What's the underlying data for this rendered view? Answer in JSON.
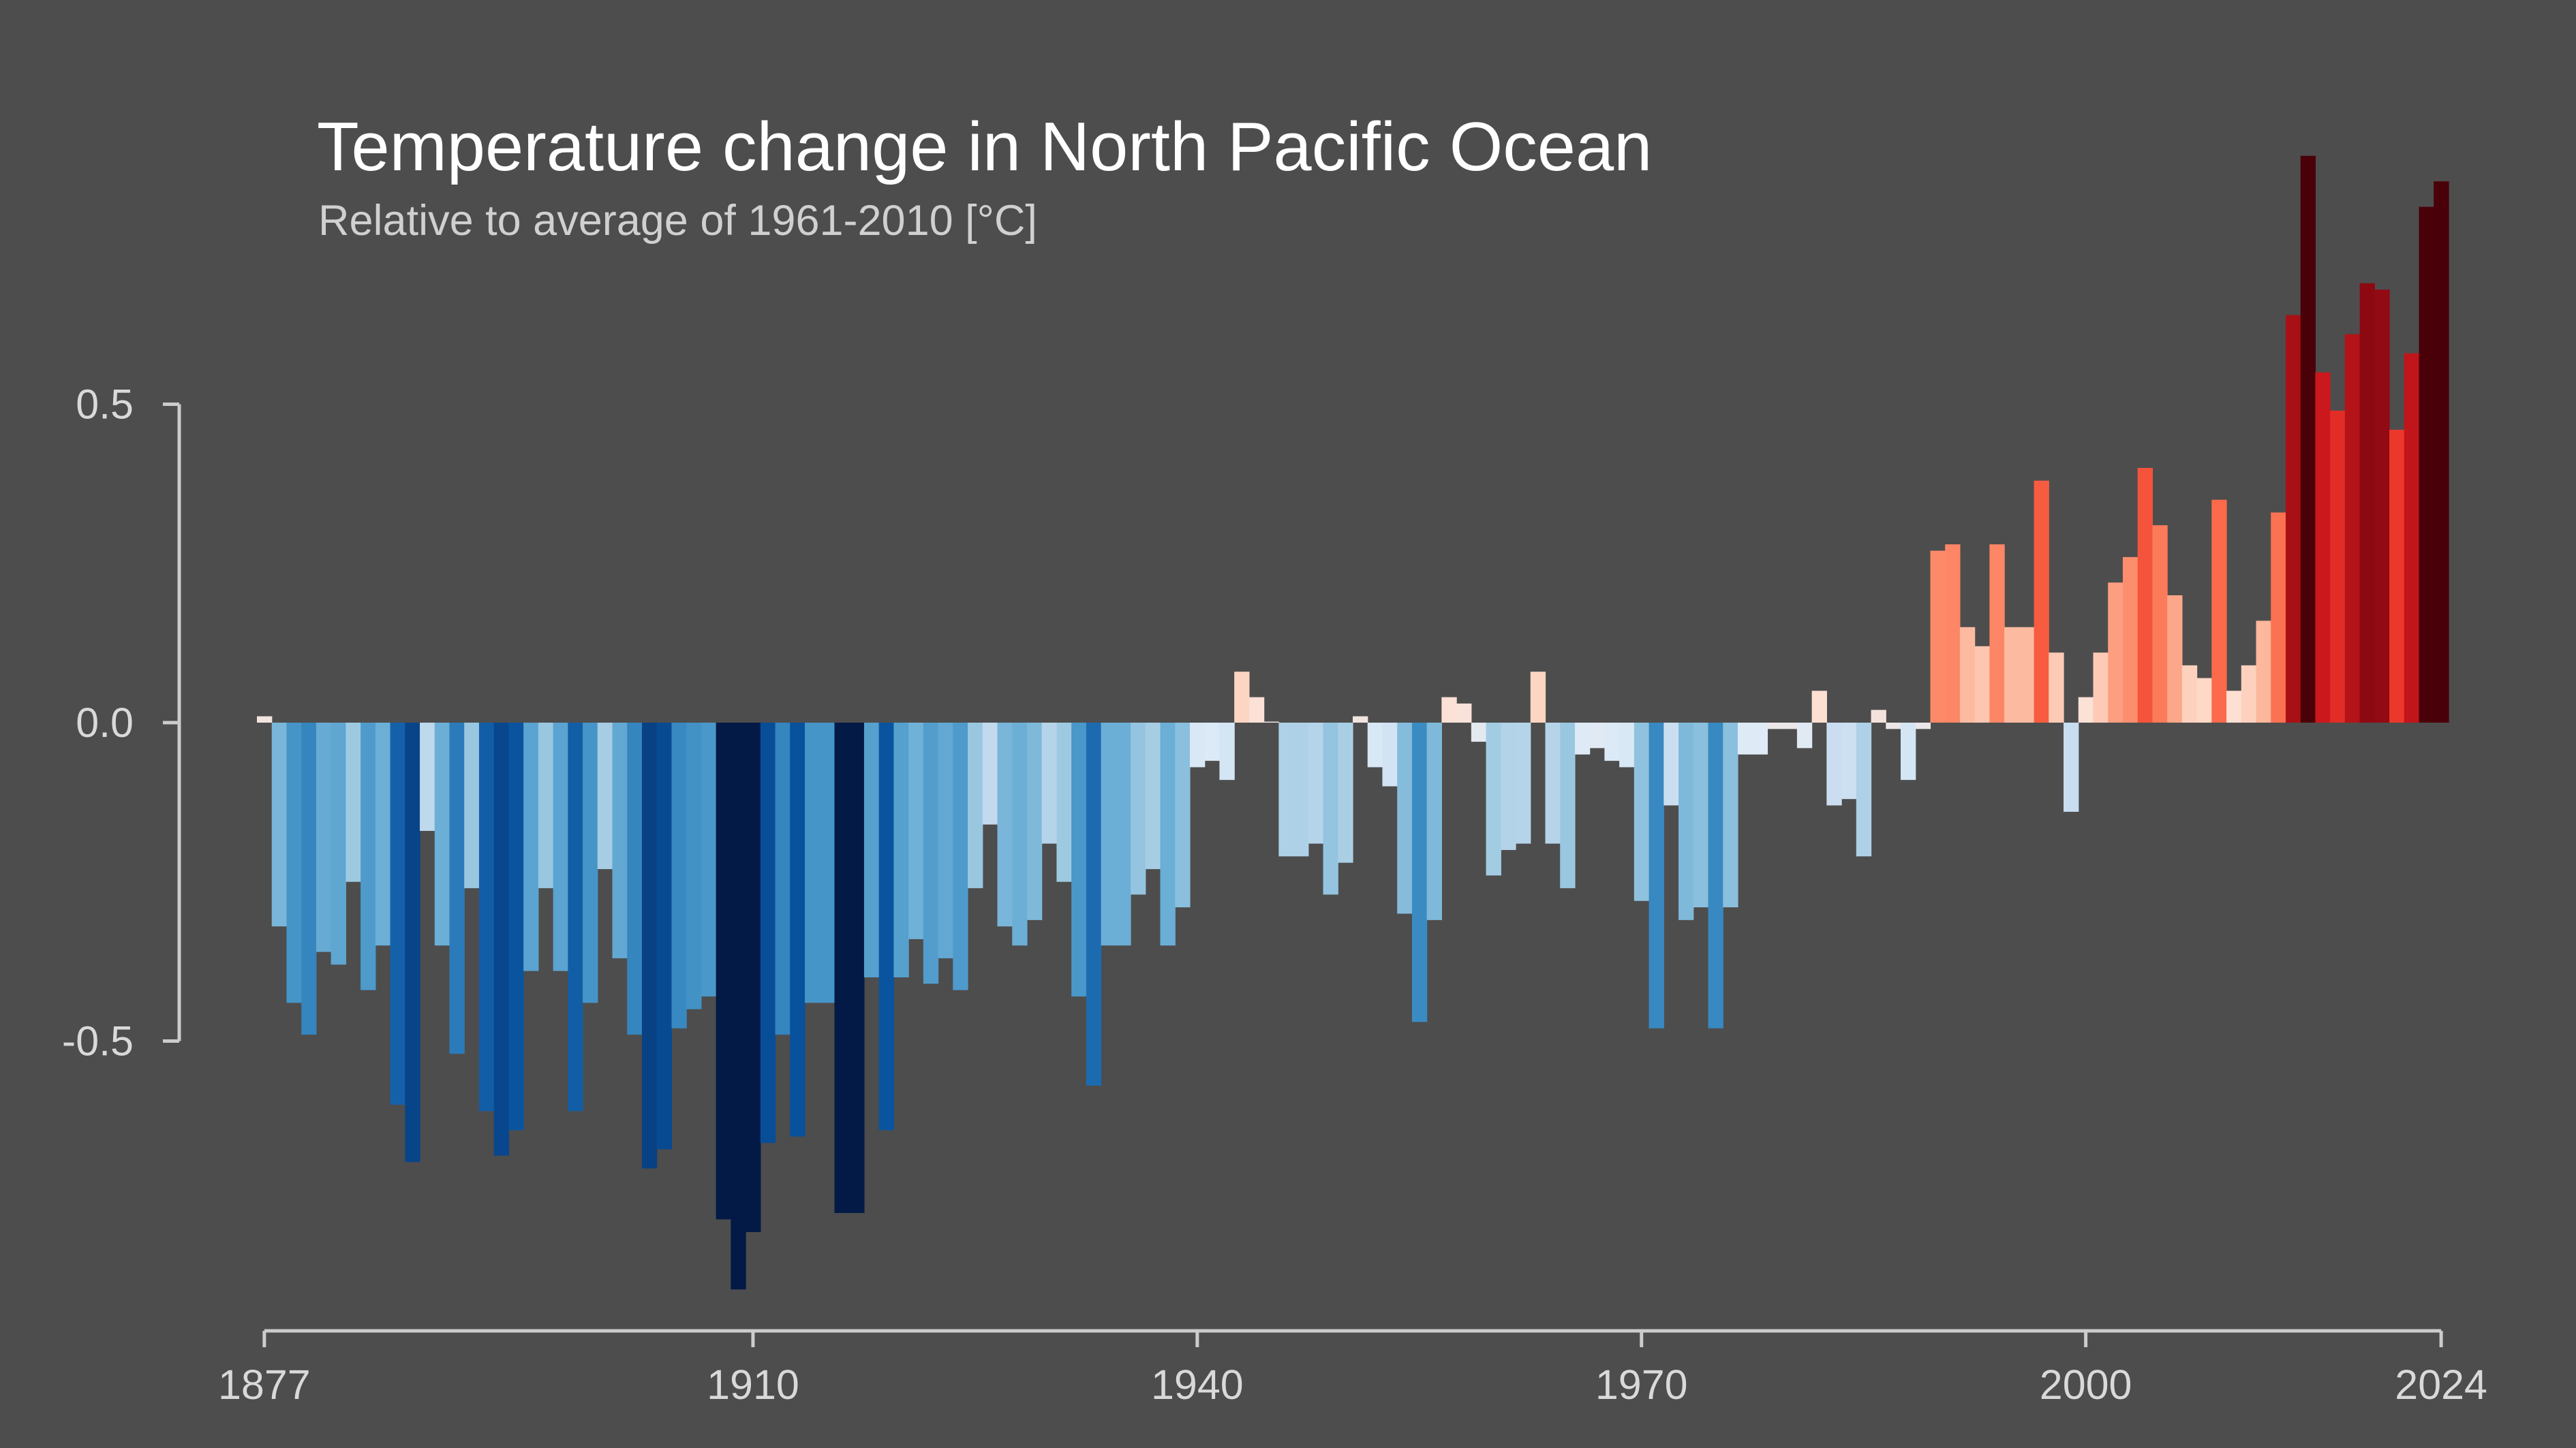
{
  "chart_data": {
    "type": "bar",
    "title": "Temperature change in North Pacific Ocean",
    "subtitle": "Relative to average of 1961-2010  [°C]",
    "xlabel": "",
    "ylabel": "",
    "x_start": 1877,
    "x_end": 2024,
    "xlim": [
      1877,
      2024
    ],
    "ylim": [
      -0.95,
      0.92
    ],
    "x_ticks": [
      1877,
      1910,
      1940,
      1970,
      2000,
      2024
    ],
    "x_tick_labels": [
      "1877",
      "1910",
      "1940",
      "1970",
      "2000",
      "2024"
    ],
    "y_ticks": [
      0.5,
      0.0,
      -0.5
    ],
    "y_tick_labels": [
      "0.5",
      "0.0",
      "-0.5"
    ],
    "grid": false,
    "legend": "none",
    "color_scale": {
      "type": "diverging",
      "range": [
        -0.75,
        0.75
      ],
      "stops": [
        "#08306b",
        "#08519c",
        "#2171b5",
        "#4292c6",
        "#6baed6",
        "#9ecae1",
        "#c6dbef",
        "#deebf7",
        "#fee0d2",
        "#fcbba1",
        "#fc9272",
        "#fb6a4a",
        "#ef3b2c",
        "#cb181d",
        "#a50f15",
        "#67000d"
      ],
      "extreme_cold": "#021a45",
      "extreme_warm": "#4a0008"
    },
    "values": [
      0.01,
      -0.32,
      -0.44,
      -0.49,
      -0.36,
      -0.38,
      -0.25,
      -0.42,
      -0.35,
      -0.6,
      -0.69,
      -0.17,
      -0.35,
      -0.52,
      -0.26,
      -0.61,
      -0.68,
      -0.64,
      -0.39,
      -0.26,
      -0.39,
      -0.61,
      -0.44,
      -0.23,
      -0.37,
      -0.49,
      -0.7,
      -0.67,
      -0.48,
      -0.45,
      -0.43,
      -0.78,
      -0.89,
      -0.8,
      -0.66,
      -0.49,
      -0.65,
      -0.44,
      -0.44,
      -0.77,
      -0.77,
      -0.4,
      -0.64,
      -0.4,
      -0.34,
      -0.41,
      -0.37,
      -0.42,
      -0.26,
      -0.16,
      -0.32,
      -0.35,
      -0.31,
      -0.19,
      -0.25,
      -0.43,
      -0.57,
      -0.35,
      -0.35,
      -0.27,
      -0.23,
      -0.35,
      -0.29,
      -0.07,
      -0.06,
      -0.09,
      0.08,
      0.04,
      0.0,
      -0.21,
      -0.21,
      -0.19,
      -0.27,
      -0.22,
      0.01,
      -0.07,
      -0.1,
      -0.3,
      -0.47,
      -0.31,
      0.04,
      0.03,
      -0.03,
      -0.24,
      -0.2,
      -0.19,
      0.08,
      -0.19,
      -0.26,
      -0.05,
      -0.04,
      -0.06,
      -0.07,
      -0.28,
      -0.48,
      -0.13,
      -0.31,
      -0.29,
      -0.48,
      -0.29,
      -0.05,
      -0.05,
      -0.01,
      -0.01,
      -0.04,
      0.05,
      -0.13,
      -0.12,
      -0.21,
      0.02,
      -0.01,
      -0.09,
      -0.01,
      0.27,
      0.28,
      0.15,
      0.12,
      0.28,
      0.15,
      0.15,
      0.38,
      0.11,
      -0.14,
      0.04,
      0.11,
      0.22,
      0.26,
      0.4,
      0.31,
      0.2,
      0.09,
      0.07,
      0.35,
      0.05,
      0.09,
      0.16,
      0.33,
      0.64,
      0.89,
      0.55,
      0.49,
      0.61,
      0.69,
      0.68,
      0.46,
      0.58,
      0.81,
      0.85
    ]
  }
}
